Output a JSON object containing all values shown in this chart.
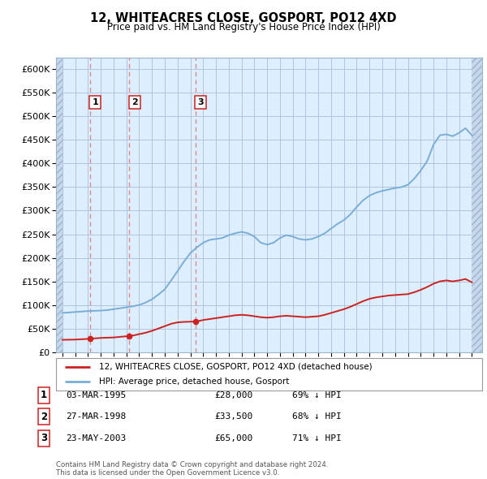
{
  "title1": "12, WHITEACRES CLOSE, GOSPORT, PO12 4XD",
  "title2": "Price paid vs. HM Land Registry's House Price Index (HPI)",
  "ylabel_ticks": [
    "£0",
    "£50K",
    "£100K",
    "£150K",
    "£200K",
    "£250K",
    "£300K",
    "£350K",
    "£400K",
    "£450K",
    "£500K",
    "£550K",
    "£600K"
  ],
  "ytick_values": [
    0,
    50000,
    100000,
    150000,
    200000,
    250000,
    300000,
    350000,
    400000,
    450000,
    500000,
    550000,
    600000
  ],
  "ylim": [
    0,
    625000
  ],
  "xlim_start": 1992.5,
  "xlim_end": 2025.8,
  "hpi_color": "#7aaed6",
  "price_color": "#cc2222",
  "sale_dates": [
    1995.17,
    1998.23,
    2003.39
  ],
  "sale_prices": [
    28000,
    33500,
    65000
  ],
  "sale_labels": [
    "1",
    "2",
    "3"
  ],
  "dashed_line_color": "#e08080",
  "legend_label_red": "12, WHITEACRES CLOSE, GOSPORT, PO12 4XD (detached house)",
  "legend_label_blue": "HPI: Average price, detached house, Gosport",
  "table_rows": [
    {
      "num": "1",
      "date": "03-MAR-1995",
      "price": "£28,000",
      "hpi": "69% ↓ HPI"
    },
    {
      "num": "2",
      "date": "27-MAR-1998",
      "price": "£33,500",
      "hpi": "68% ↓ HPI"
    },
    {
      "num": "3",
      "date": "23-MAY-2003",
      "price": "£65,000",
      "hpi": "71% ↓ HPI"
    }
  ],
  "footnote": "Contains HM Land Registry data © Crown copyright and database right 2024.\nThis data is licensed under the Open Government Licence v3.0.",
  "background_chart": "#ddeeff",
  "background_hatch": "#c8d8ec",
  "grid_color": "#b0c4de",
  "hpi_keypoints": [
    [
      1993.0,
      83000
    ],
    [
      1993.5,
      84000
    ],
    [
      1994.0,
      85000
    ],
    [
      1994.5,
      86000
    ],
    [
      1995.0,
      87000
    ],
    [
      1995.5,
      87500
    ],
    [
      1996.0,
      88000
    ],
    [
      1996.5,
      89000
    ],
    [
      1997.0,
      91000
    ],
    [
      1997.5,
      93000
    ],
    [
      1998.0,
      95000
    ],
    [
      1998.5,
      97000
    ],
    [
      1999.0,
      100000
    ],
    [
      1999.5,
      105000
    ],
    [
      2000.0,
      112000
    ],
    [
      2000.5,
      122000
    ],
    [
      2001.0,
      133000
    ],
    [
      2001.5,
      152000
    ],
    [
      2002.0,
      172000
    ],
    [
      2002.5,
      192000
    ],
    [
      2003.0,
      210000
    ],
    [
      2003.5,
      222000
    ],
    [
      2004.0,
      232000
    ],
    [
      2004.5,
      238000
    ],
    [
      2005.0,
      240000
    ],
    [
      2005.5,
      242000
    ],
    [
      2006.0,
      248000
    ],
    [
      2006.5,
      252000
    ],
    [
      2007.0,
      255000
    ],
    [
      2007.5,
      252000
    ],
    [
      2008.0,
      245000
    ],
    [
      2008.5,
      232000
    ],
    [
      2009.0,
      228000
    ],
    [
      2009.5,
      232000
    ],
    [
      2010.0,
      242000
    ],
    [
      2010.5,
      248000
    ],
    [
      2011.0,
      245000
    ],
    [
      2011.5,
      240000
    ],
    [
      2012.0,
      238000
    ],
    [
      2012.5,
      240000
    ],
    [
      2013.0,
      245000
    ],
    [
      2013.5,
      252000
    ],
    [
      2014.0,
      262000
    ],
    [
      2014.5,
      272000
    ],
    [
      2015.0,
      280000
    ],
    [
      2015.5,
      292000
    ],
    [
      2016.0,
      308000
    ],
    [
      2016.5,
      322000
    ],
    [
      2017.0,
      332000
    ],
    [
      2017.5,
      338000
    ],
    [
      2018.0,
      342000
    ],
    [
      2018.5,
      345000
    ],
    [
      2019.0,
      348000
    ],
    [
      2019.5,
      350000
    ],
    [
      2020.0,
      355000
    ],
    [
      2020.5,
      368000
    ],
    [
      2021.0,
      385000
    ],
    [
      2021.5,
      405000
    ],
    [
      2022.0,
      440000
    ],
    [
      2022.5,
      460000
    ],
    [
      2023.0,
      462000
    ],
    [
      2023.5,
      458000
    ],
    [
      2024.0,
      465000
    ],
    [
      2024.5,
      475000
    ],
    [
      2025.0,
      460000
    ]
  ],
  "red_keypoints": [
    [
      1993.0,
      26000
    ],
    [
      1994.0,
      26500
    ],
    [
      1995.0,
      28000
    ],
    [
      1995.5,
      29000
    ],
    [
      1996.0,
      30000
    ],
    [
      1997.0,
      31000
    ],
    [
      1998.0,
      33500
    ],
    [
      1998.5,
      35000
    ],
    [
      1999.0,
      38000
    ],
    [
      1999.5,
      41000
    ],
    [
      2000.0,
      45000
    ],
    [
      2000.5,
      50000
    ],
    [
      2001.0,
      55000
    ],
    [
      2001.5,
      60000
    ],
    [
      2002.0,
      63000
    ],
    [
      2002.5,
      64000
    ],
    [
      2003.0,
      64500
    ],
    [
      2003.5,
      65000
    ],
    [
      2004.0,
      68000
    ],
    [
      2004.5,
      70000
    ],
    [
      2005.0,
      72000
    ],
    [
      2005.5,
      74000
    ],
    [
      2006.0,
      76000
    ],
    [
      2006.5,
      78000
    ],
    [
      2007.0,
      79000
    ],
    [
      2007.5,
      78000
    ],
    [
      2008.0,
      76000
    ],
    [
      2008.5,
      74000
    ],
    [
      2009.0,
      73000
    ],
    [
      2009.5,
      74000
    ],
    [
      2010.0,
      76000
    ],
    [
      2010.5,
      77000
    ],
    [
      2011.0,
      76000
    ],
    [
      2011.5,
      75000
    ],
    [
      2012.0,
      74000
    ],
    [
      2012.5,
      75000
    ],
    [
      2013.0,
      76000
    ],
    [
      2013.5,
      79000
    ],
    [
      2014.0,
      83000
    ],
    [
      2014.5,
      87000
    ],
    [
      2015.0,
      91000
    ],
    [
      2015.5,
      96000
    ],
    [
      2016.0,
      102000
    ],
    [
      2016.5,
      108000
    ],
    [
      2017.0,
      113000
    ],
    [
      2017.5,
      116000
    ],
    [
      2018.0,
      118000
    ],
    [
      2018.5,
      120000
    ],
    [
      2019.0,
      121000
    ],
    [
      2019.5,
      122000
    ],
    [
      2020.0,
      123000
    ],
    [
      2020.5,
      127000
    ],
    [
      2021.0,
      132000
    ],
    [
      2021.5,
      138000
    ],
    [
      2022.0,
      145000
    ],
    [
      2022.5,
      150000
    ],
    [
      2023.0,
      152000
    ],
    [
      2023.5,
      150000
    ],
    [
      2024.0,
      152000
    ],
    [
      2024.5,
      155000
    ],
    [
      2025.0,
      148000
    ]
  ]
}
